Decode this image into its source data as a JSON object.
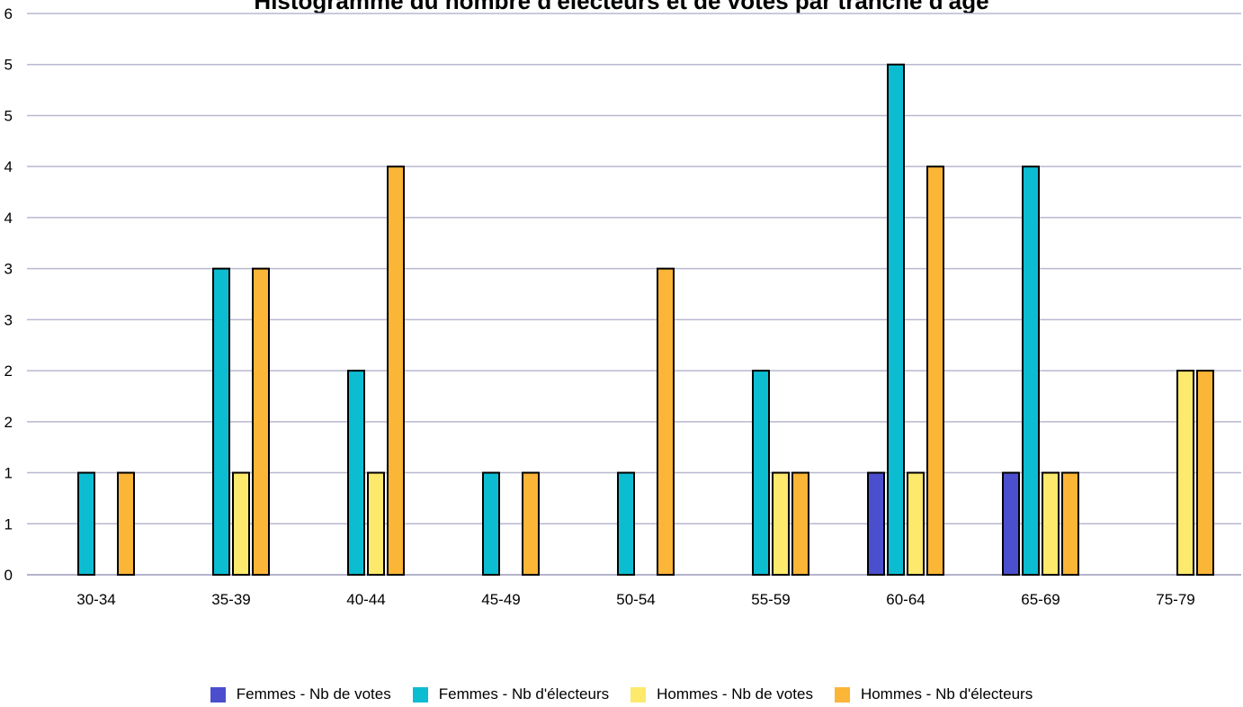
{
  "chart_data": {
    "type": "bar",
    "title": "Histogramme du nombre d'électeurs et de votes par tranche d'âge",
    "categories": [
      "30-34",
      "35-39",
      "40-44",
      "45-49",
      "50-54",
      "55-59",
      "60-64",
      "65-69",
      "75-79"
    ],
    "series": [
      {
        "name": "Femmes - Nb de votes",
        "color": "#4b4fcd",
        "values": [
          0,
          0,
          0,
          0,
          0,
          0,
          1,
          1,
          0
        ]
      },
      {
        "name": "Femmes - Nb d'électeurs",
        "color": "#0cbdd2",
        "values": [
          1,
          3,
          2,
          1,
          1,
          2,
          5,
          4,
          0
        ]
      },
      {
        "name": "Hommes - Nb de votes",
        "color": "#fde96c",
        "values": [
          0,
          1,
          1,
          0,
          0,
          1,
          1,
          1,
          2
        ]
      },
      {
        "name": "Hommes - Nb d'électeurs",
        "color": "#fbb537",
        "values": [
          1,
          3,
          4,
          1,
          3,
          1,
          4,
          1,
          2
        ]
      }
    ],
    "y_tick_labels": [
      "0",
      "1",
      "1",
      "2",
      "2",
      "3",
      "3",
      "4",
      "4",
      "5",
      "5",
      "6"
    ],
    "ylim": [
      0,
      5.5
    ],
    "grid": true,
    "legend_position": "bottom-center"
  }
}
